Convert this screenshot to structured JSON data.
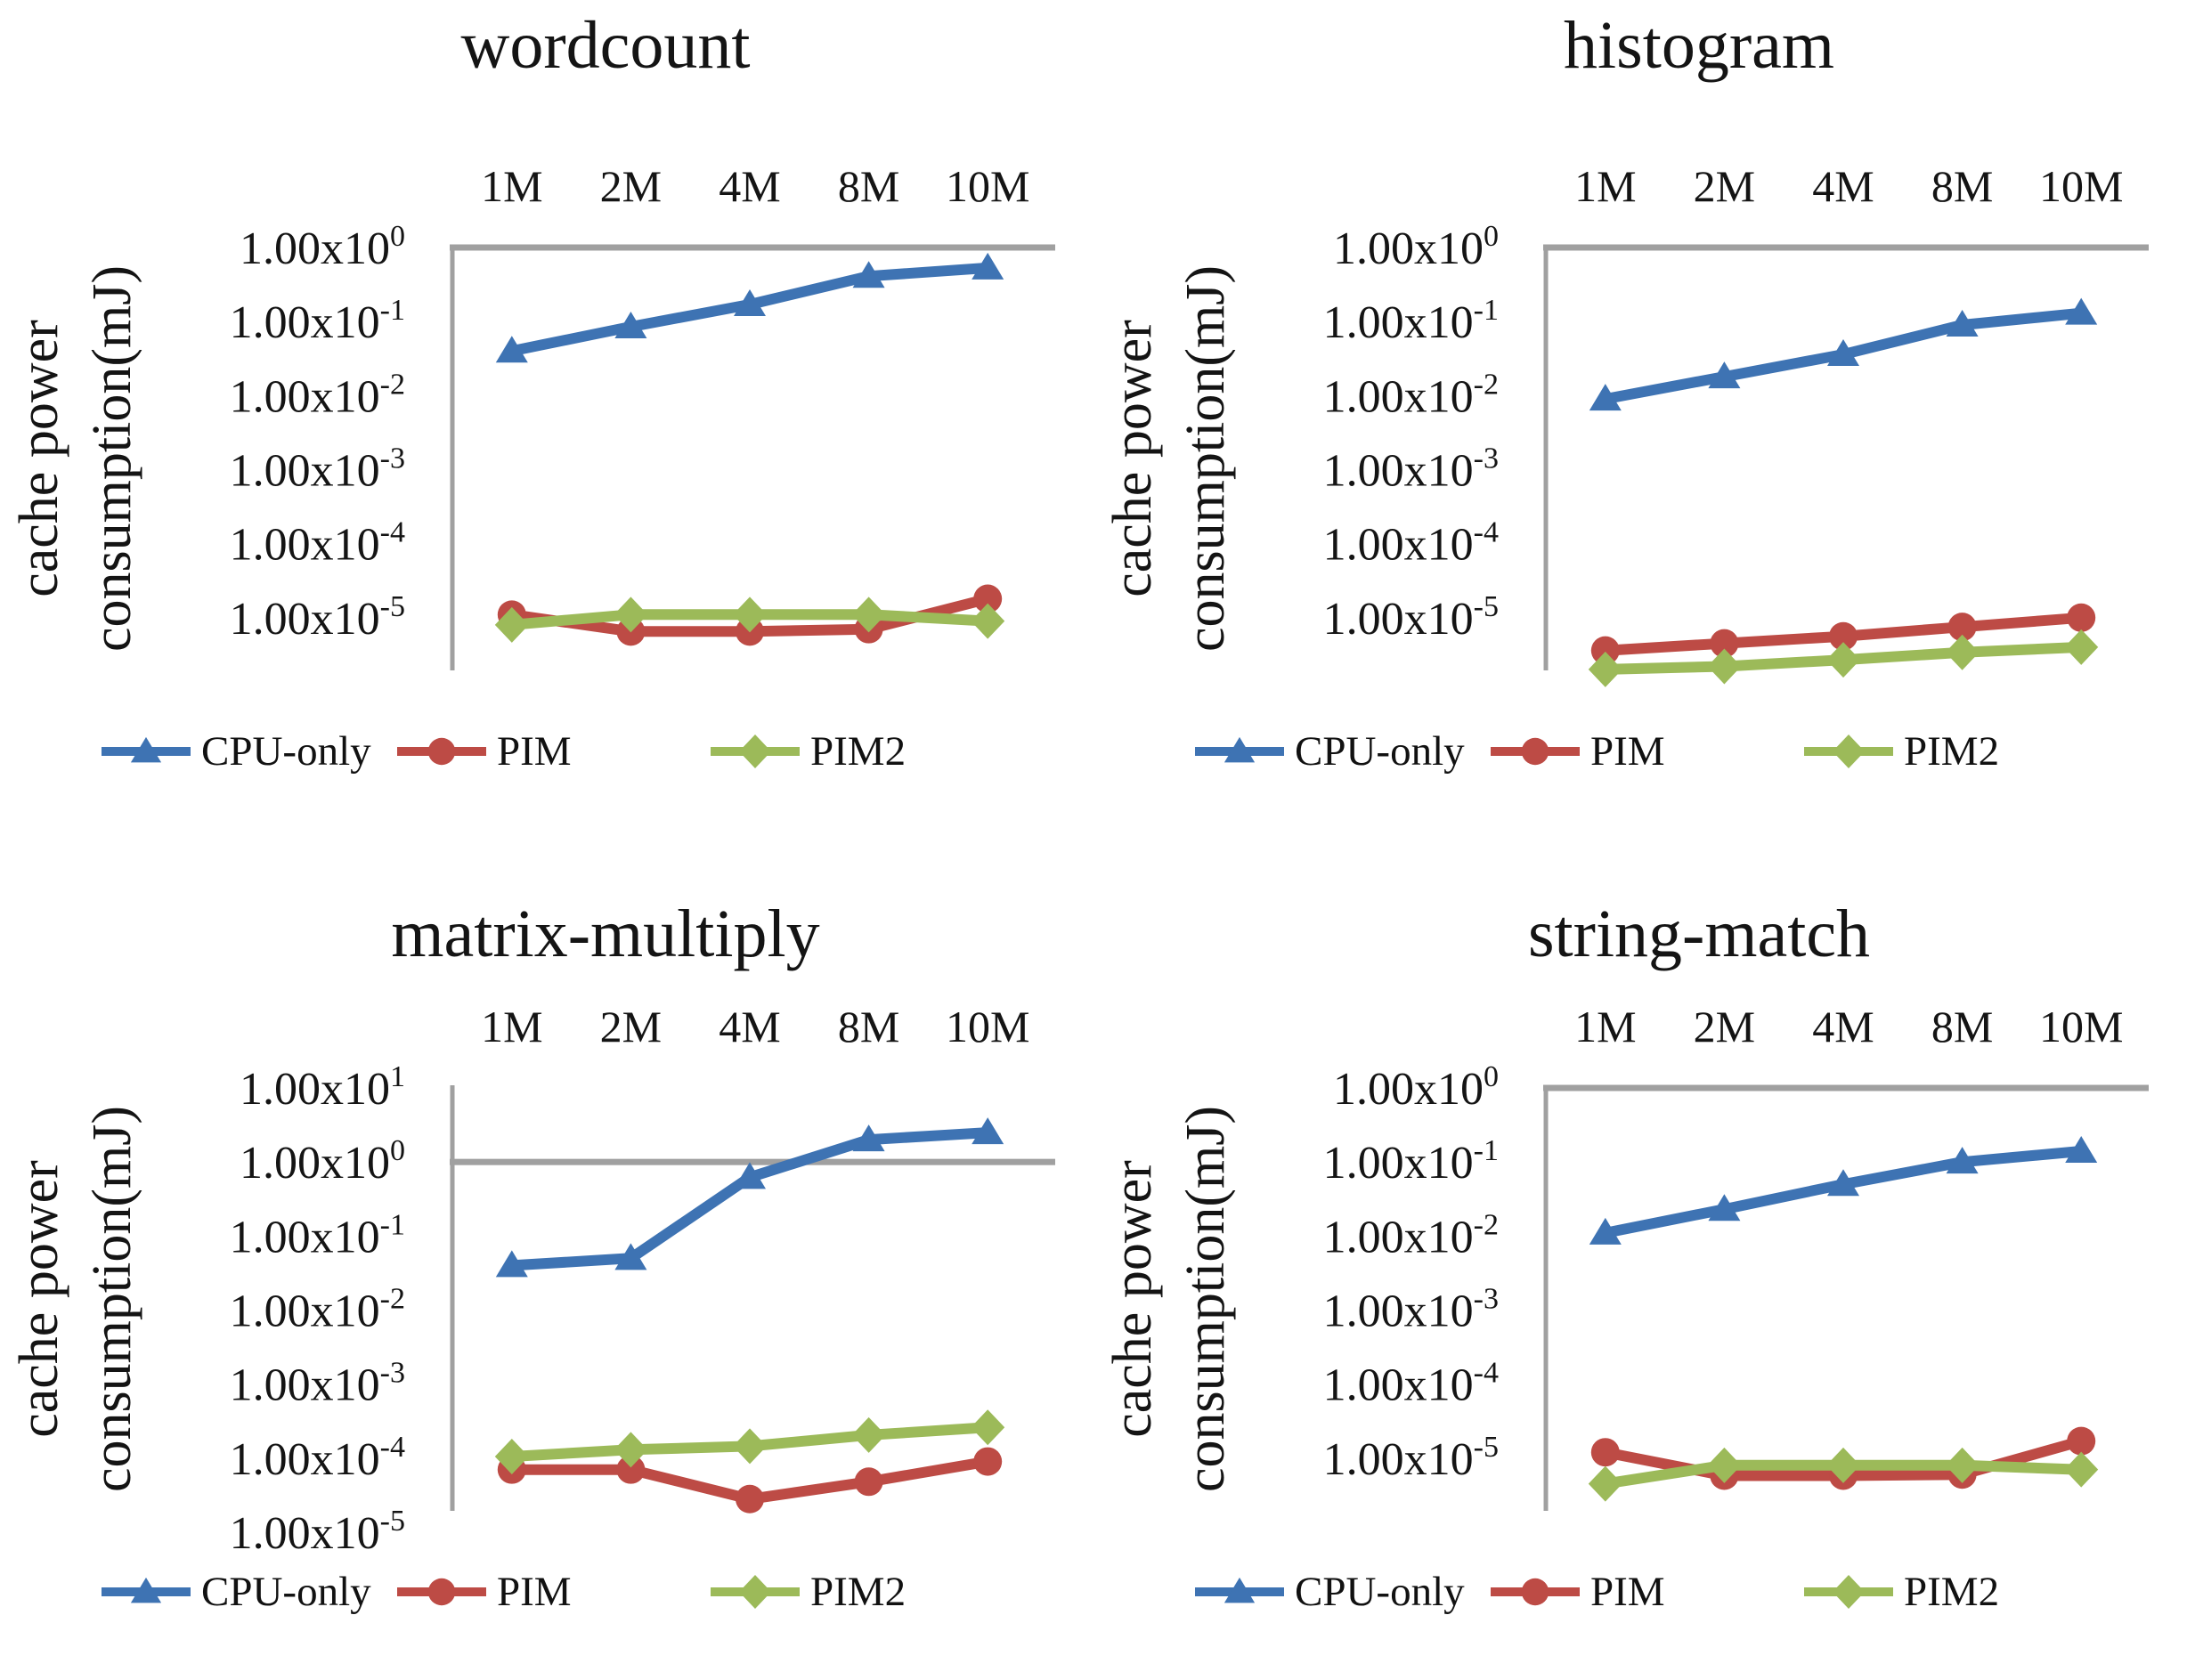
{
  "figure": {
    "background": "#ffffff",
    "description": "Four log-scale line charts comparing cache power consumption of CPU-only, PIM and PIM2 across input sizes"
  },
  "colors": {
    "axis_line": "#a0a0a0",
    "text": "#141414",
    "cpu_only": "#3e73b3",
    "pim": "#bd4b45",
    "pim2": "#9cba59"
  },
  "y_axis_title_lines": [
    "cache power",
    "consumption(mJ)"
  ],
  "chart_data": [
    {
      "type": "line",
      "title": "wordcount",
      "xlabel": "",
      "ylabel": "cache power consumption(mJ)",
      "y_scale": "log",
      "x_axis_side": "top",
      "legend_position": "bottom",
      "x_categories": [
        "1M",
        "2M",
        "4M",
        "8M",
        "10M"
      ],
      "y_ticks": [
        "1.00x10^0",
        "1.00x10^-1",
        "1.00x10^-2",
        "1.00x10^-3",
        "1.00x10^-4",
        "1.00x10^-5"
      ],
      "y_top_exponent": 0,
      "ylim": [
        2e-06,
        1
      ],
      "series": [
        {
          "name": "CPU-only",
          "marker": "triangle",
          "color": "#3e73b3",
          "values": [
            0.04,
            0.085,
            0.17,
            0.41,
            0.53
          ]
        },
        {
          "name": "PIM",
          "marker": "circle",
          "color": "#bd4b45",
          "values": [
            1.1e-05,
            6.5e-06,
            6.5e-06,
            7e-06,
            1.8e-05
          ]
        },
        {
          "name": "PIM2",
          "marker": "diamond",
          "color": "#9cba59",
          "values": [
            8e-06,
            1.1e-05,
            1.1e-05,
            1.1e-05,
            9e-06
          ]
        }
      ]
    },
    {
      "type": "line",
      "title": "histogram",
      "xlabel": "",
      "ylabel": "cache power consumption(mJ)",
      "y_scale": "log",
      "x_axis_side": "top",
      "legend_position": "bottom",
      "x_categories": [
        "1M",
        "2M",
        "4M",
        "8M",
        "10M"
      ],
      "y_ticks": [
        "1.00x10^0",
        "1.00x10^-1",
        "1.00x10^-2",
        "1.00x10^-3",
        "1.00x10^-4",
        "1.00x10^-5"
      ],
      "y_top_exponent": 0,
      "ylim": [
        2e-06,
        1
      ],
      "series": [
        {
          "name": "CPU-only",
          "marker": "triangle",
          "color": "#3e73b3",
          "values": [
            0.009,
            0.018,
            0.036,
            0.09,
            0.13
          ]
        },
        {
          "name": "PIM",
          "marker": "circle",
          "color": "#bd4b45",
          "values": [
            3.6e-06,
            4.5e-06,
            5.6e-06,
            7.5e-06,
            1e-05
          ]
        },
        {
          "name": "PIM2",
          "marker": "diamond",
          "color": "#9cba59",
          "values": [
            2e-06,
            2.2e-06,
            2.7e-06,
            3.4e-06,
            4e-06
          ]
        }
      ]
    },
    {
      "type": "line",
      "title": "matrix-multiply",
      "xlabel": "",
      "ylabel": "cache power consumption(mJ)",
      "y_scale": "log",
      "x_axis_side": "top",
      "legend_position": "bottom",
      "x_categories": [
        "1M",
        "2M",
        "4M",
        "8M",
        "10M"
      ],
      "y_ticks": [
        "1.00x10^1",
        "1.00x10^0",
        "1.00x10^-1",
        "1.00x10^-2",
        "1.00x10^-3",
        "1.00x10^-4",
        "1.00x10^-5"
      ],
      "y_top_exponent": 1,
      "ylim": [
        2e-05,
        10
      ],
      "series": [
        {
          "name": "CPU-only",
          "marker": "triangle",
          "color": "#3e73b3",
          "values": [
            0.04,
            0.05,
            0.62,
            2.0,
            2.5
          ]
        },
        {
          "name": "PIM",
          "marker": "circle",
          "color": "#bd4b45",
          "values": [
            7e-05,
            7e-05,
            2.8e-05,
            4.8e-05,
            9e-05
          ]
        },
        {
          "name": "PIM2",
          "marker": "diamond",
          "color": "#9cba59",
          "values": [
            0.000105,
            0.00013,
            0.000145,
            0.000205,
            0.00026
          ]
        }
      ]
    },
    {
      "type": "line",
      "title": "string-match",
      "xlabel": "",
      "ylabel": "cache power consumption(mJ)",
      "y_scale": "log",
      "x_axis_side": "top",
      "legend_position": "bottom",
      "x_categories": [
        "1M",
        "2M",
        "4M",
        "8M",
        "10M"
      ],
      "y_ticks": [
        "1.00x10^0",
        "1.00x10^-1",
        "1.00x10^-2",
        "1.00x10^-3",
        "1.00x10^-4",
        "1.00x10^-5"
      ],
      "y_top_exponent": 0,
      "ylim": [
        2e-06,
        1
      ],
      "series": [
        {
          "name": "CPU-only",
          "marker": "triangle",
          "color": "#3e73b3",
          "values": [
            0.011,
            0.023,
            0.05,
            0.1,
            0.14
          ]
        },
        {
          "name": "PIM",
          "marker": "circle",
          "color": "#bd4b45",
          "values": [
            1.2e-05,
            5.8e-06,
            5.8e-06,
            6e-06,
            1.7e-05
          ]
        },
        {
          "name": "PIM2",
          "marker": "diamond",
          "color": "#9cba59",
          "values": [
            4.5e-06,
            8e-06,
            8e-06,
            8e-06,
            7e-06
          ]
        }
      ]
    }
  ]
}
